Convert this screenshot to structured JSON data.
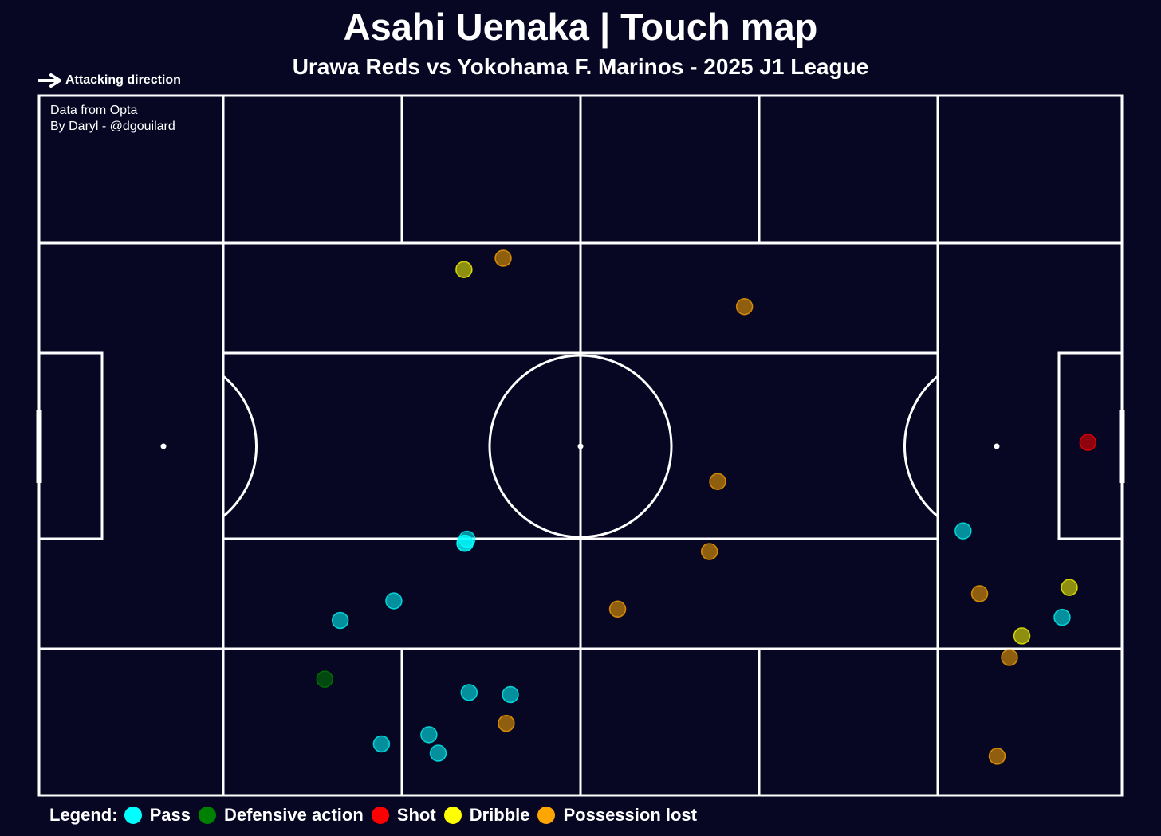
{
  "header": {
    "title": "Asahi Uenaka | Touch map",
    "subtitle": "Urawa Reds vs Yokohama F. Marinos - 2025 J1 League",
    "attacking_label": "Attacking direction"
  },
  "credits": {
    "line1": "Data from Opta",
    "line2": "By Daryl - @dgouilard"
  },
  "legend": {
    "label": "Legend:",
    "items": [
      {
        "key": "pass",
        "label": "Pass",
        "color": "#00ffff"
      },
      {
        "key": "defensive",
        "label": "Defensive action",
        "color": "#008000"
      },
      {
        "key": "shot",
        "label": "Shot",
        "color": "#ff0000"
      },
      {
        "key": "dribble",
        "label": "Dribble",
        "color": "#ffff00"
      },
      {
        "key": "lost",
        "label": "Possession lost",
        "color": "#ffa500"
      }
    ]
  },
  "chart_data": {
    "type": "scatter",
    "pitch": {
      "length": 105,
      "width": 68,
      "orientation": "horizontal",
      "attacking": "left-to-right",
      "background": "#070723",
      "line_color": "#ffffff"
    },
    "x_range": [
      0,
      105
    ],
    "y_range": [
      0,
      68
    ],
    "series": [
      {
        "name": "Pass",
        "color": "#00ffff",
        "points": [
          [
            41.3,
            24.5
          ],
          [
            41.5,
            24.9
          ],
          [
            41.7,
            10.0
          ],
          [
            34.4,
            18.9
          ],
          [
            41.3,
            24.5
          ],
          [
            89.6,
            25.7
          ],
          [
            99.2,
            17.3
          ],
          [
            29.2,
            17.0
          ],
          [
            45.7,
            9.8
          ],
          [
            37.8,
            5.9
          ],
          [
            38.7,
            4.1
          ],
          [
            33.2,
            5.0
          ]
        ]
      },
      {
        "name": "Defensive action",
        "color": "#008000",
        "points": [
          [
            27.7,
            11.3
          ]
        ]
      },
      {
        "name": "Shot",
        "color": "#ff0000",
        "points": [
          [
            101.7,
            34.3
          ]
        ]
      },
      {
        "name": "Dribble",
        "color": "#ffff00",
        "points": [
          [
            41.2,
            51.1
          ],
          [
            99.9,
            20.2
          ],
          [
            95.3,
            15.5
          ]
        ]
      },
      {
        "name": "Possession lost",
        "color": "#ffa500",
        "points": [
          [
            45.0,
            52.2
          ],
          [
            68.4,
            47.5
          ],
          [
            65.8,
            30.5
          ],
          [
            65.0,
            23.7
          ],
          [
            56.1,
            18.1
          ],
          [
            45.3,
            7.0
          ],
          [
            91.2,
            19.6
          ],
          [
            94.1,
            13.4
          ],
          [
            92.9,
            3.8
          ]
        ]
      }
    ]
  }
}
